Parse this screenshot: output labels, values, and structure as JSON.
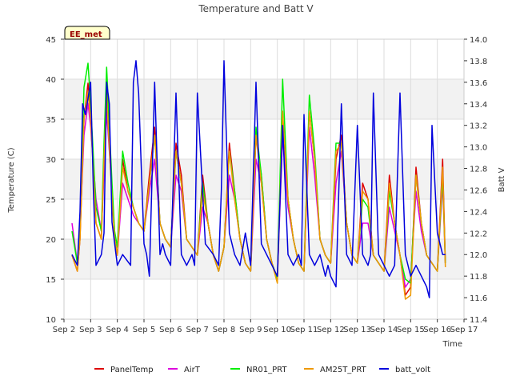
{
  "chart_data": {
    "type": "line",
    "title": "Temperature and Batt V",
    "xlabel": "Time",
    "ylabel": "Temperature (C)",
    "y2label": "Batt V",
    "badge": "EE_met",
    "xlim": [
      2,
      17
    ],
    "ylim": [
      10,
      45
    ],
    "y2lim": [
      11.4,
      14.0
    ],
    "x_ticks": [
      2,
      3,
      4,
      5,
      6,
      7,
      8,
      9,
      10,
      11,
      12,
      13,
      14,
      15,
      16,
      17
    ],
    "x_tick_labels": [
      "Sep 2",
      "Sep 3",
      "Sep 4",
      "Sep 5",
      "Sep 6",
      "Sep 7",
      "Sep 8",
      "Sep 9",
      "Sep 10",
      "Sep 11",
      "Sep 12",
      "Sep 13",
      "Sep 14",
      "Sep 15",
      "Sep 16",
      "Sep 17"
    ],
    "y_ticks": [
      10,
      15,
      20,
      25,
      30,
      35,
      40,
      45
    ],
    "y2_ticks": [
      11.4,
      11.6,
      11.8,
      12.0,
      12.2,
      12.4,
      12.6,
      12.8,
      13.0,
      13.2,
      13.4,
      13.6,
      13.8,
      14.0
    ],
    "y2_tick_labels": [
      "11.4",
      "11.6",
      "11.8",
      "12.0",
      "12.2",
      "12.4",
      "12.6",
      "12.8",
      "13.0",
      "13.2",
      "13.4",
      "13.6",
      "13.8",
      "14.0"
    ],
    "grid": true,
    "legend_position": "bottom",
    "series": [
      {
        "name": "PanelTemp",
        "color": "#dd0000",
        "axis": "left",
        "x": [
          2.3,
          2.5,
          2.6,
          2.75,
          2.9,
          3.0,
          3.2,
          3.4,
          3.5,
          3.6,
          3.8,
          3.9,
          4.0,
          4.2,
          4.4,
          4.6,
          4.8,
          5.0,
          5.2,
          5.4,
          5.6,
          5.8,
          6.0,
          6.2,
          6.4,
          6.6,
          6.8,
          7.0,
          7.2,
          7.4,
          7.6,
          7.8,
          8.0,
          8.2,
          8.4,
          8.6,
          8.8,
          9.0,
          9.2,
          9.4,
          9.6,
          9.8,
          10.0,
          10.2,
          10.4,
          10.6,
          10.8,
          11.0,
          11.2,
          11.4,
          11.6,
          11.8,
          12.0,
          12.2,
          12.4,
          12.6,
          12.8,
          13.0,
          13.2,
          13.4,
          13.6,
          13.8,
          14.0,
          14.2,
          14.4,
          14.6,
          14.8,
          15.0,
          15.2,
          15.4,
          15.6,
          15.8,
          16.0,
          16.2,
          16.3
        ],
        "y": [
          18,
          16,
          20,
          35,
          39.5,
          36,
          22,
          20,
          30,
          39,
          26,
          20,
          18,
          30,
          26,
          24,
          22,
          21,
          28,
          34,
          22,
          20,
          19,
          32,
          28,
          20,
          19,
          18,
          28,
          22,
          18,
          16,
          19,
          32,
          26,
          20,
          17,
          16,
          33,
          28,
          20,
          17,
          15,
          35,
          25,
          20,
          17,
          16,
          36,
          30,
          20,
          18,
          17,
          30,
          33,
          22,
          18,
          17,
          27,
          25,
          18,
          17,
          16,
          28,
          22,
          18,
          13,
          14,
          29,
          22,
          18,
          17,
          16,
          30,
          17
        ]
      },
      {
        "name": "AirT",
        "color": "#dd00dd",
        "axis": "left",
        "x": [
          2.3,
          2.5,
          2.6,
          2.75,
          2.9,
          3.0,
          3.2,
          3.4,
          3.5,
          3.6,
          3.8,
          3.9,
          4.0,
          4.2,
          4.4,
          4.6,
          4.8,
          5.0,
          5.2,
          5.4,
          5.6,
          5.8,
          6.0,
          6.2,
          6.4,
          6.6,
          6.8,
          7.0,
          7.2,
          7.4,
          7.6,
          7.8,
          8.0,
          8.2,
          8.4,
          8.6,
          8.8,
          9.0,
          9.2,
          9.4,
          9.6,
          9.8,
          10.0,
          10.2,
          10.4,
          10.6,
          10.8,
          11.0,
          11.2,
          11.4,
          11.6,
          11.8,
          12.0,
          12.2,
          12.4,
          12.6,
          12.8,
          13.0,
          13.2,
          13.4,
          13.6,
          13.8,
          14.0,
          14.2,
          14.4,
          14.6,
          14.8,
          15.0,
          15.2,
          15.4,
          15.6,
          15.8,
          16.0,
          16.2,
          16.3
        ],
        "y": [
          22,
          17,
          21,
          33,
          37,
          34,
          25,
          21,
          28,
          36,
          26,
          20,
          18,
          27,
          25,
          23,
          22,
          21,
          26,
          30,
          22,
          20,
          19,
          28,
          26,
          20,
          19,
          18,
          24,
          22,
          18,
          16,
          19,
          28,
          25,
          20,
          17,
          16,
          30,
          27,
          20,
          17,
          15,
          33,
          24,
          20,
          17,
          16,
          34,
          28,
          20,
          18,
          17,
          27,
          31,
          22,
          18,
          17,
          22,
          22,
          18,
          17,
          16,
          24,
          21,
          18,
          14,
          15,
          26,
          21,
          18,
          17,
          16,
          27,
          17
        ]
      },
      {
        "name": "NR01_PRT",
        "color": "#00ee00",
        "axis": "left",
        "x": [
          2.3,
          2.5,
          2.6,
          2.75,
          2.9,
          3.0,
          3.2,
          3.4,
          3.5,
          3.6,
          3.8,
          3.9,
          4.0,
          4.2,
          4.4,
          4.6,
          4.8,
          5.0,
          5.2,
          5.4,
          5.6,
          5.8,
          6.0,
          6.2,
          6.4,
          6.6,
          6.8,
          7.0,
          7.2,
          7.4,
          7.6,
          7.8,
          8.0,
          8.2,
          8.4,
          8.6,
          8.8,
          9.0,
          9.2,
          9.4,
          9.6,
          9.8,
          10.0,
          10.2,
          10.4,
          10.6,
          10.8,
          11.0,
          11.2,
          11.4,
          11.6,
          11.8,
          12.0,
          12.2,
          12.4,
          12.6,
          12.8,
          13.0,
          13.2,
          13.4,
          13.6,
          13.8,
          14.0,
          14.2,
          14.4,
          14.6,
          14.8,
          15.0,
          15.2,
          15.4,
          15.6,
          15.8,
          16.0,
          16.2,
          16.3
        ],
        "y": [
          21,
          17,
          22,
          39,
          42,
          37,
          24,
          21,
          32,
          41.5,
          27,
          21,
          19,
          31,
          27,
          24,
          22,
          21,
          27,
          33,
          22,
          20,
          19,
          31,
          27,
          20,
          19,
          18,
          27,
          22,
          18,
          16,
          19,
          31,
          26,
          20,
          17,
          16,
          34,
          28,
          20,
          17,
          15,
          40,
          25,
          20,
          17,
          16,
          38,
          31,
          20,
          18,
          17,
          32,
          32,
          22,
          18,
          17,
          25,
          24,
          18,
          17,
          16,
          26,
          22,
          18,
          15,
          14.5,
          28,
          22,
          18,
          17,
          16,
          28,
          17
        ]
      },
      {
        "name": "AM25T_PRT",
        "color": "#ee9900",
        "axis": "left",
        "x": [
          2.3,
          2.5,
          2.6,
          2.75,
          2.9,
          3.0,
          3.2,
          3.4,
          3.5,
          3.6,
          3.8,
          3.9,
          4.0,
          4.2,
          4.4,
          4.6,
          4.8,
          5.0,
          5.2,
          5.4,
          5.6,
          5.8,
          6.0,
          6.2,
          6.4,
          6.6,
          6.8,
          7.0,
          7.2,
          7.4,
          7.6,
          7.8,
          8.0,
          8.2,
          8.4,
          8.6,
          8.8,
          9.0,
          9.2,
          9.4,
          9.6,
          9.8,
          10.0,
          10.2,
          10.4,
          10.6,
          10.8,
          11.0,
          11.2,
          11.4,
          11.6,
          11.8,
          12.0,
          12.2,
          12.4,
          12.6,
          12.8,
          13.0,
          13.2,
          13.4,
          13.6,
          13.8,
          14.0,
          14.2,
          14.4,
          14.6,
          14.8,
          15.0,
          15.2,
          15.4,
          15.6,
          15.8,
          16.0,
          16.2,
          16.3
        ],
        "y": [
          18,
          16,
          20,
          35,
          38.5,
          35,
          22,
          20,
          30,
          38,
          25,
          20,
          18,
          29,
          26,
          24,
          22,
          21,
          27,
          33,
          22,
          20,
          19,
          31,
          27,
          20,
          19,
          18,
          26,
          22,
          18,
          16,
          19,
          31,
          25,
          20,
          17,
          16,
          33,
          27,
          20,
          17,
          14.5,
          36,
          25,
          20,
          17,
          16,
          36,
          30,
          20,
          18,
          17,
          31,
          32,
          22,
          18,
          17,
          26,
          25,
          18,
          17,
          16,
          27,
          22,
          18,
          12.5,
          13,
          28,
          22,
          18,
          17,
          16,
          29,
          16.5
        ]
      },
      {
        "name": "batt_volt",
        "color": "#0000dd",
        "axis": "right",
        "x": [
          2.3,
          2.5,
          2.6,
          2.7,
          2.8,
          3.0,
          3.1,
          3.2,
          3.4,
          3.5,
          3.6,
          3.7,
          3.8,
          4.0,
          4.2,
          4.5,
          4.6,
          4.7,
          4.8,
          5.0,
          5.1,
          5.2,
          5.4,
          5.6,
          5.7,
          5.8,
          6.0,
          6.2,
          6.4,
          6.6,
          6.8,
          6.9,
          7.0,
          7.3,
          7.6,
          7.8,
          7.9,
          8.0,
          8.2,
          8.4,
          8.6,
          8.8,
          9.0,
          9.2,
          9.4,
          9.6,
          9.8,
          10.0,
          10.2,
          10.4,
          10.6,
          10.8,
          10.9,
          11.0,
          11.2,
          11.4,
          11.6,
          11.8,
          11.9,
          12.0,
          12.2,
          12.4,
          12.6,
          12.8,
          13.0,
          13.2,
          13.4,
          13.5,
          13.6,
          13.8,
          14.0,
          14.2,
          14.4,
          14.6,
          14.8,
          15.0,
          15.2,
          15.4,
          15.6,
          15.7,
          15.8,
          16.0,
          16.2,
          16.3
        ],
        "y": [
          12.0,
          11.9,
          12.4,
          13.4,
          13.3,
          13.6,
          12.6,
          11.9,
          12.0,
          12.2,
          13.6,
          13.4,
          12.3,
          11.9,
          12.0,
          11.9,
          13.6,
          13.8,
          13.5,
          12.1,
          12.0,
          11.8,
          13.6,
          12.0,
          12.1,
          12.0,
          11.9,
          13.5,
          12.0,
          11.9,
          12.0,
          11.9,
          13.5,
          12.1,
          12.0,
          11.9,
          12.6,
          13.8,
          12.2,
          12.0,
          11.9,
          12.2,
          11.9,
          13.6,
          12.1,
          12.0,
          11.9,
          11.8,
          13.2,
          12.0,
          11.9,
          12.0,
          11.9,
          13.3,
          12.0,
          11.9,
          12.0,
          11.8,
          11.9,
          11.8,
          11.7,
          13.4,
          12.0,
          11.9,
          13.2,
          12.0,
          11.9,
          12.0,
          13.5,
          12.0,
          11.9,
          11.8,
          11.9,
          13.5,
          12.0,
          11.8,
          11.9,
          11.8,
          11.7,
          11.6,
          13.2,
          12.2,
          12.0,
          12.0
        ]
      }
    ]
  }
}
